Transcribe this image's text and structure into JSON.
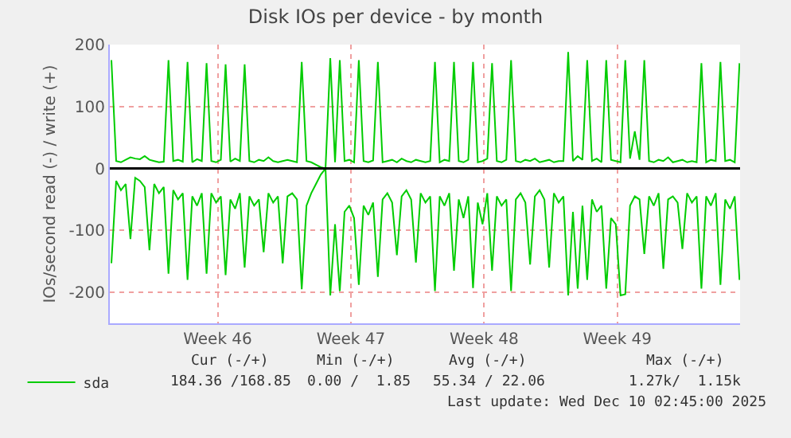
{
  "chart_data": {
    "type": "line",
    "title": "Disk IOs per device - by month",
    "ylabel": "IOs/second read (-) / write (+)",
    "x": [
      "2025-11-07T02:00",
      "2025-11-07T08:00",
      "2025-11-07T14:00",
      "2025-11-07T20:00",
      "2025-11-08T02:00",
      "2025-11-08T08:00",
      "2025-11-08T14:00",
      "2025-11-08T20:00",
      "2025-11-09T02:00",
      "2025-11-09T08:00",
      "2025-11-09T14:00",
      "2025-11-09T20:00",
      "2025-11-10T02:00",
      "2025-11-10T08:00",
      "2025-11-10T14:00",
      "2025-11-10T20:00",
      "2025-11-11T02:00",
      "2025-11-11T08:00",
      "2025-11-11T14:00",
      "2025-11-11T20:00",
      "2025-11-12T02:00",
      "2025-11-12T08:00",
      "2025-11-12T14:00",
      "2025-11-12T20:00",
      "2025-11-13T02:00",
      "2025-11-13T08:00",
      "2025-11-13T14:00",
      "2025-11-13T20:00",
      "2025-11-14T02:00",
      "2025-11-14T08:00",
      "2025-11-14T14:00",
      "2025-11-14T20:00",
      "2025-11-15T02:00",
      "2025-11-15T08:00",
      "2025-11-15T14:00",
      "2025-11-15T20:00",
      "2025-11-16T02:00",
      "2025-11-16T08:00",
      "2025-11-16T14:00",
      "2025-11-16T20:00",
      "2025-11-17T02:00",
      "2025-11-17T08:00",
      "2025-11-17T14:00",
      "2025-11-17T20:00",
      "2025-11-18T02:00",
      "2025-11-18T08:00",
      "2025-11-18T14:00",
      "2025-11-18T20:00",
      "2025-11-19T02:00",
      "2025-11-19T08:00",
      "2025-11-19T14:00",
      "2025-11-19T20:00",
      "2025-11-20T02:00",
      "2025-11-20T08:00",
      "2025-11-20T14:00",
      "2025-11-20T20:00",
      "2025-11-21T02:00",
      "2025-11-21T08:00",
      "2025-11-21T14:00",
      "2025-11-21T20:00",
      "2025-11-22T02:00",
      "2025-11-22T08:00",
      "2025-11-22T14:00",
      "2025-11-22T20:00",
      "2025-11-23T02:00",
      "2025-11-23T08:00",
      "2025-11-23T14:00",
      "2025-11-23T20:00",
      "2025-11-24T02:00",
      "2025-11-24T08:00",
      "2025-11-24T14:00",
      "2025-11-24T20:00",
      "2025-11-25T02:00",
      "2025-11-25T08:00",
      "2025-11-25T14:00",
      "2025-11-25T20:00",
      "2025-11-26T02:00",
      "2025-11-26T08:00",
      "2025-11-26T14:00",
      "2025-11-26T20:00",
      "2025-11-27T02:00",
      "2025-11-27T08:00",
      "2025-11-27T14:00",
      "2025-11-27T20:00",
      "2025-11-28T02:00",
      "2025-11-28T08:00",
      "2025-11-28T14:00",
      "2025-11-28T20:00",
      "2025-11-29T02:00",
      "2025-11-29T08:00",
      "2025-11-29T14:00",
      "2025-11-29T20:00",
      "2025-11-30T02:00",
      "2025-11-30T08:00",
      "2025-11-30T14:00",
      "2025-11-30T20:00",
      "2025-12-01T02:00",
      "2025-12-01T08:00",
      "2025-12-01T14:00",
      "2025-12-01T20:00",
      "2025-12-02T02:00",
      "2025-12-02T08:00",
      "2025-12-02T14:00",
      "2025-12-02T20:00",
      "2025-12-03T02:00",
      "2025-12-03T08:00",
      "2025-12-03T14:00",
      "2025-12-03T20:00",
      "2025-12-04T02:00",
      "2025-12-04T08:00",
      "2025-12-04T14:00",
      "2025-12-04T20:00",
      "2025-12-05T02:00",
      "2025-12-05T08:00",
      "2025-12-05T14:00",
      "2025-12-05T20:00",
      "2025-12-06T02:00",
      "2025-12-06T08:00",
      "2025-12-06T14:00",
      "2025-12-06T20:00",
      "2025-12-07T02:00",
      "2025-12-07T08:00",
      "2025-12-07T14:00",
      "2025-12-07T20:00",
      "2025-12-08T02:00",
      "2025-12-08T08:00",
      "2025-12-08T14:00",
      "2025-12-08T20:00",
      "2025-12-09T02:00",
      "2025-12-09T08:00",
      "2025-12-09T14:00",
      "2025-12-09T20:00",
      "2025-12-10T02:00"
    ],
    "series": [
      {
        "name": "sda",
        "color": "#00cc00",
        "values": [
          175,
          12,
          10,
          14,
          18,
          16,
          15,
          20,
          14,
          12,
          10,
          11,
          175,
          12,
          14,
          11,
          172,
          10,
          15,
          12,
          170,
          12,
          10,
          14,
          168,
          11,
          16,
          12,
          168,
          12,
          10,
          14,
          12,
          18,
          12,
          10,
          12,
          14,
          12,
          10,
          172,
          12,
          10,
          6,
          2,
          0,
          178,
          10,
          175,
          12,
          14,
          10,
          175,
          12,
          10,
          13,
          172,
          10,
          12,
          14,
          10,
          16,
          12,
          10,
          14,
          12,
          10,
          12,
          172,
          10,
          14,
          12,
          172,
          12,
          10,
          14,
          172,
          10,
          12,
          16,
          170,
          12,
          10,
          14,
          175,
          12,
          10,
          14,
          12,
          16,
          10,
          12,
          14,
          10,
          12,
          12,
          188,
          12,
          20,
          14,
          175,
          12,
          16,
          10,
          175,
          14,
          12,
          10,
          175,
          16,
          60,
          14,
          175,
          12,
          10,
          14,
          12,
          18,
          10,
          12,
          14,
          10,
          12,
          10,
          170,
          10,
          14,
          12,
          172,
          12,
          14,
          10,
          170
        ]
      },
      {
        "color": "#00cc00",
        "values": [
          -153,
          -20,
          -35,
          -25,
          -114,
          -15,
          -20,
          -30,
          -132,
          -25,
          -40,
          -30,
          -170,
          -35,
          -50,
          -40,
          -180,
          -45,
          -60,
          -40,
          -170,
          -40,
          -55,
          -45,
          -172,
          -50,
          -65,
          -40,
          -160,
          -45,
          -60,
          -50,
          -135,
          -40,
          -55,
          -45,
          -153,
          -45,
          -40,
          -50,
          -195,
          -60,
          -40,
          -25,
          -10,
          0,
          -205,
          -90,
          -198,
          -70,
          -60,
          -80,
          -188,
          -60,
          -75,
          -55,
          -175,
          -50,
          -40,
          -55,
          -140,
          -45,
          -35,
          -50,
          -152,
          -40,
          -55,
          -45,
          -198,
          -45,
          -60,
          -40,
          -165,
          -50,
          -80,
          -45,
          -193,
          -55,
          -90,
          -40,
          -165,
          -45,
          -60,
          -50,
          -198,
          -50,
          -40,
          -55,
          -155,
          -45,
          -35,
          -50,
          -160,
          -40,
          -55,
          -45,
          -205,
          -70,
          -194,
          -60,
          -180,
          -50,
          -70,
          -60,
          -194,
          -80,
          -90,
          -205,
          -203,
          -60,
          -45,
          -50,
          -138,
          -45,
          -60,
          -40,
          -162,
          -50,
          -45,
          -55,
          -130,
          -40,
          -55,
          -45,
          -194,
          -45,
          -60,
          -40,
          -188,
          -50,
          -65,
          -45,
          -180
        ]
      }
    ],
    "xlim": [
      "2025-11-07T00:00",
      "2025-12-10T02:45"
    ],
    "xticks": [
      {
        "value": "2025-11-12T16:00",
        "label": "Week 46"
      },
      {
        "value": "2025-11-19T16:00",
        "label": "Week 47"
      },
      {
        "value": "2025-11-26T16:00",
        "label": "Week 48"
      },
      {
        "value": "2025-12-03T16:00",
        "label": "Week 49"
      }
    ],
    "ylim": [
      -250,
      200
    ],
    "yticks": [
      -200,
      -100,
      0,
      100,
      200
    ],
    "grid": true,
    "ref_lines": [
      {
        "axis": "y",
        "value": 0,
        "color": "#000000"
      }
    ],
    "legend": "bottom left",
    "marker": "none",
    "line_style": "solid",
    "annotations": [
      "Cur (-/+)",
      "Min (-/+)",
      "Avg (-/+)",
      "Max (-/+)",
      "184.36 /168.85",
      "0.00 /  1.85",
      "55.34 / 22.06",
      "1.27k/  1.15k",
      "Last update: Wed Dec 10 02:45:00 2025"
    ]
  }
}
